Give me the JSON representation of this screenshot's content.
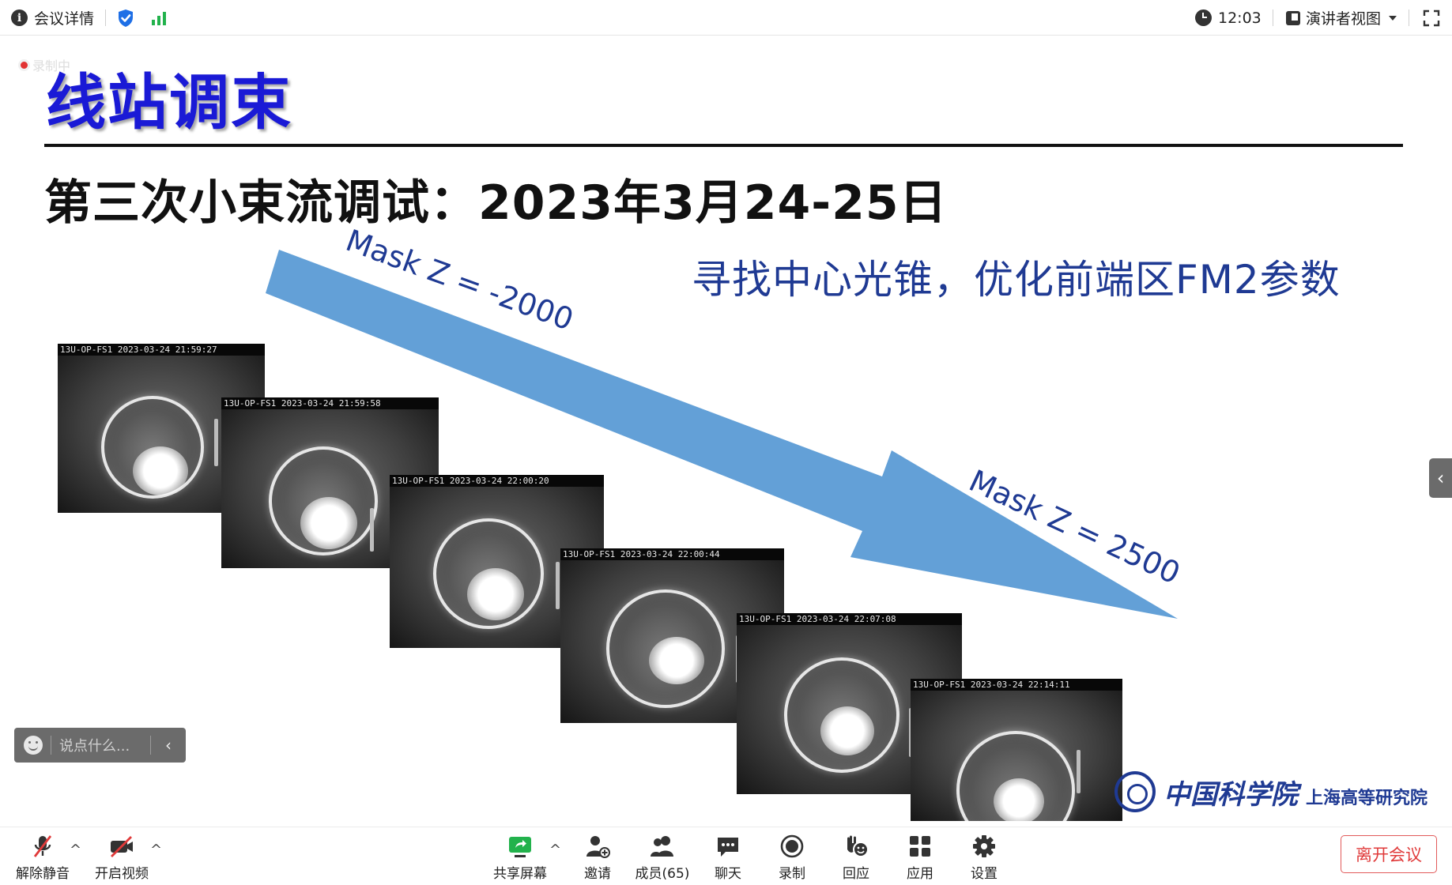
{
  "topbar": {
    "meeting_details": "会议详情",
    "time": "12:03",
    "view_mode": "演讲者视图",
    "icons": [
      "info-icon",
      "shield-check-icon",
      "signal-icon",
      "clock-icon",
      "layout-icon",
      "chevron-down-icon",
      "fullscreen-icon"
    ]
  },
  "recording": {
    "label": "录制中"
  },
  "slide": {
    "title": "线站调束",
    "subtitle": "第三次小束流调试：2023年3月24-25日",
    "heading": "寻找中心光锥，优化前端区FM2参数",
    "mask_start": "Mask Z = -2000",
    "mask_end": "Mask Z = 2500",
    "frames": [
      {
        "caption": "13U-OP-FS1 2023-03-24 21:59:27"
      },
      {
        "caption": "13U-OP-FS1 2023-03-24 21:59:58"
      },
      {
        "caption": "13U-OP-FS1 2023-03-24 22:00:20"
      },
      {
        "caption": "13U-OP-FS1 2023-03-24 22:00:44"
      },
      {
        "caption": "13U-OP-FS1 2023-03-24 22:07:08"
      },
      {
        "caption": "13U-OP-FS1 2023-03-24 22:14:11"
      }
    ],
    "logo_name": "中国科学院",
    "logo_sub": "上海高等研究院",
    "colors": {
      "title": "#1a1ad6",
      "arrow": "#5b9bd5",
      "heading": "#1f3a93"
    }
  },
  "chat": {
    "placeholder": "说点什么..."
  },
  "toolbar": {
    "unmute": "解除静音",
    "start_video": "开启视频",
    "share_screen": "共享屏幕",
    "invite": "邀请",
    "members": "成员(65)",
    "chat": "聊天",
    "record": "录制",
    "react": "回应",
    "apps": "应用",
    "settings": "设置",
    "leave": "离开会议",
    "colors": {
      "muted": "#e03a3a",
      "share": "#22b24c",
      "leave": "#e03a3a"
    }
  }
}
